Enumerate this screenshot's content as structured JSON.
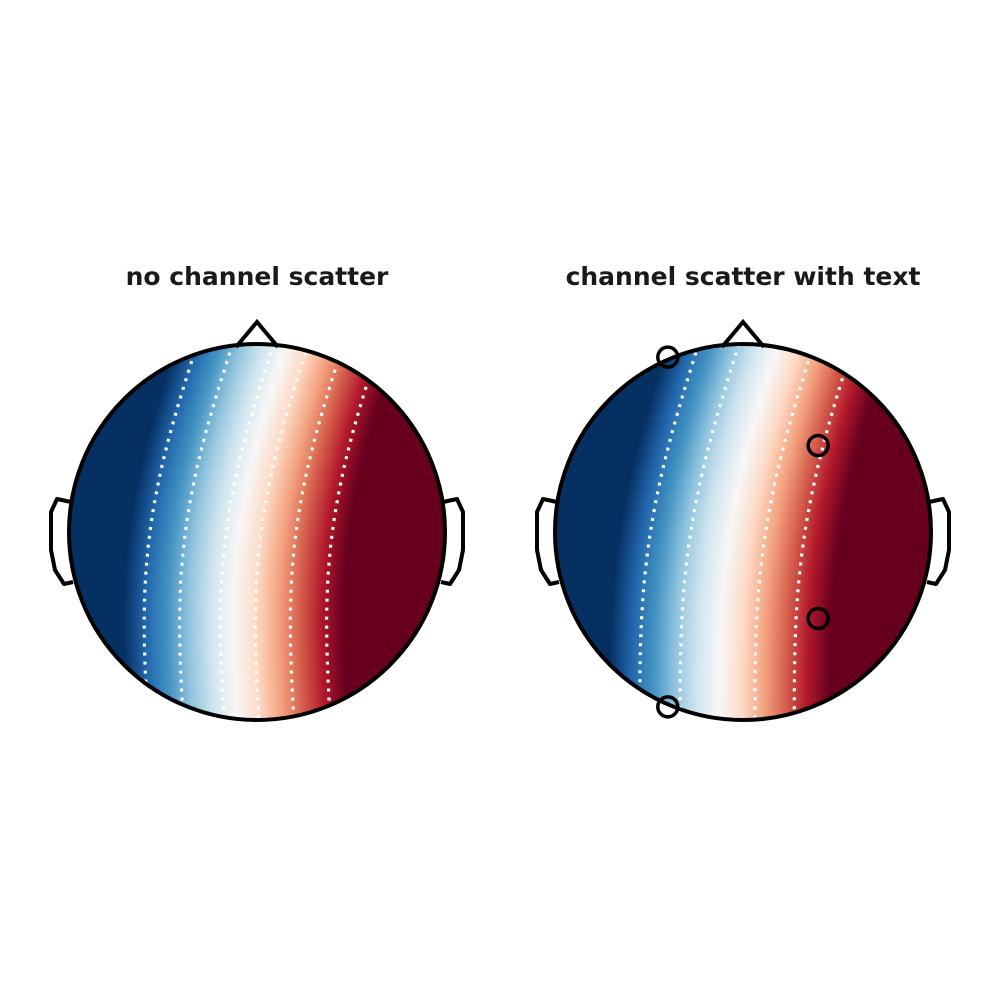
{
  "panels": [
    {
      "title": "no channel scatter"
    },
    {
      "title": "channel scatter with text"
    }
  ],
  "chart_data": [
    {
      "type": "heatmap",
      "title": "no channel scatter",
      "colormap": "RdBu_r",
      "colormap_stops": [
        "#053061",
        "#2166ac",
        "#4393c3",
        "#92c5de",
        "#d1e5f0",
        "#f7f7f7",
        "#fddbc7",
        "#f4a582",
        "#d6604d",
        "#b2182b",
        "#67001f"
      ],
      "contour_lines": 6,
      "contour_style": "white dotted",
      "channel_markers": [],
      "head_outline": true
    },
    {
      "type": "heatmap",
      "title": "channel scatter with text",
      "colormap": "RdBu_r",
      "colormap_stops": [
        "#053061",
        "#2166ac",
        "#4393c3",
        "#92c5de",
        "#d1e5f0",
        "#f7f7f7",
        "#fddbc7",
        "#f4a582",
        "#d6604d",
        "#b2182b",
        "#67001f"
      ],
      "contour_lines": 5,
      "contour_style": "white dotted",
      "channel_markers": [
        {
          "x": -0.4,
          "y": 0.93
        },
        {
          "x": 0.4,
          "y": 0.46
        },
        {
          "x": 0.4,
          "y": -0.46
        },
        {
          "x": -0.4,
          "y": -0.93
        }
      ],
      "head_outline": true
    }
  ]
}
